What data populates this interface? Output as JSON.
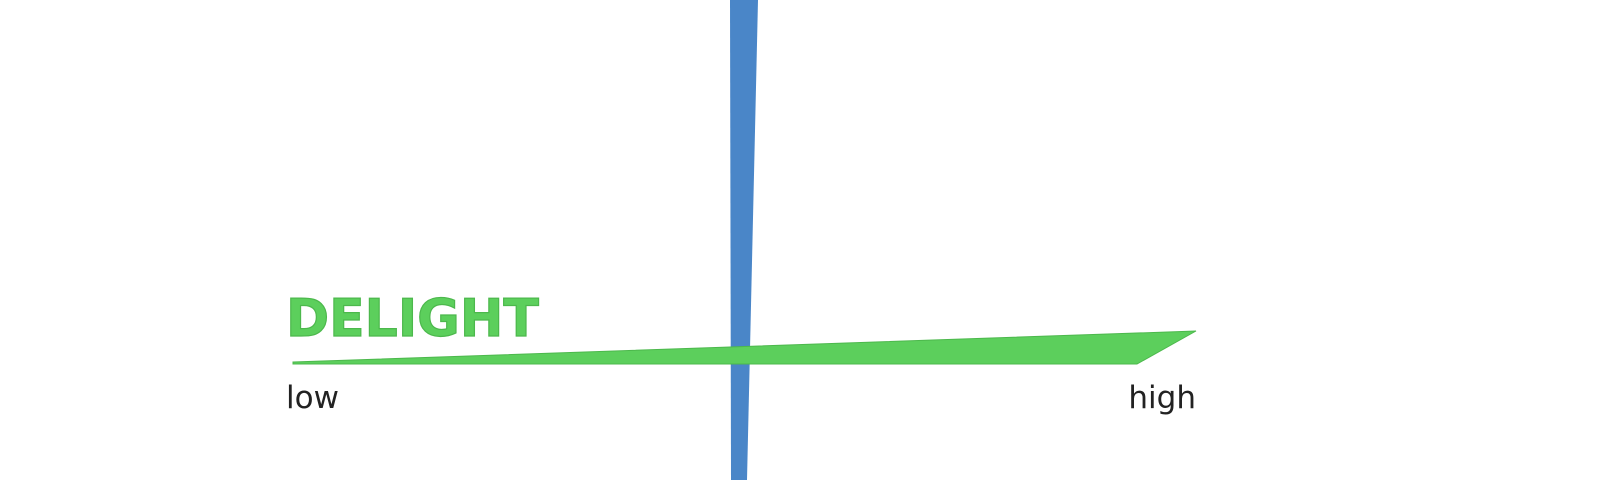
{
  "diagram": {
    "title_label": "DELIGHT",
    "low_label": "low",
    "high_label": "high"
  },
  "colors": {
    "delight_green": "#5ccf5c",
    "delight_outline": "#4cb84c",
    "axis_blue": "#4a86c8",
    "text_dark": "#222222",
    "background": "#ffffff"
  }
}
